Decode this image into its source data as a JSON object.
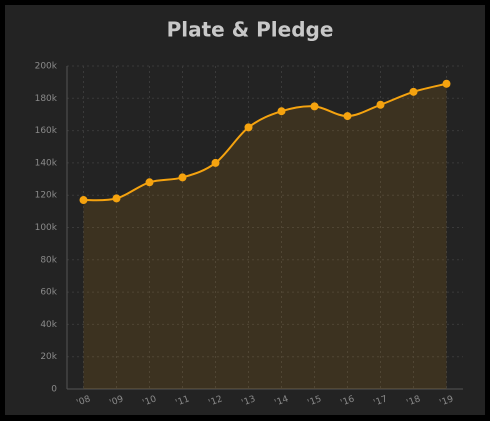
{
  "chart_data": {
    "type": "area",
    "title": "Plate & Pledge",
    "categories": [
      "'08",
      "'09",
      "'10",
      "'11",
      "'12",
      "'13",
      "'14",
      "'15",
      "'16",
      "'17",
      "'18",
      "'19"
    ],
    "values": [
      117000,
      118000,
      128000,
      131000,
      140000,
      162000,
      172000,
      175000,
      169000,
      176000,
      184000,
      189000
    ],
    "color": "#f5a30f",
    "ylim": [
      0,
      200000
    ],
    "yticks": [
      0,
      {
        "value": 20000,
        "label": "20k"
      },
      {
        "value": 40000,
        "label": "40k"
      },
      {
        "value": 60000,
        "label": "60k"
      },
      {
        "value": 80000,
        "label": "80k"
      },
      {
        "value": 100000,
        "label": "100k"
      },
      {
        "value": 120000,
        "label": "120k"
      },
      {
        "value": 140000,
        "label": "140k"
      },
      {
        "value": 160000,
        "label": "160k"
      },
      {
        "value": 180000,
        "label": "180k"
      },
      {
        "value": 200000,
        "label": "200k"
      }
    ],
    "grid": true
  }
}
